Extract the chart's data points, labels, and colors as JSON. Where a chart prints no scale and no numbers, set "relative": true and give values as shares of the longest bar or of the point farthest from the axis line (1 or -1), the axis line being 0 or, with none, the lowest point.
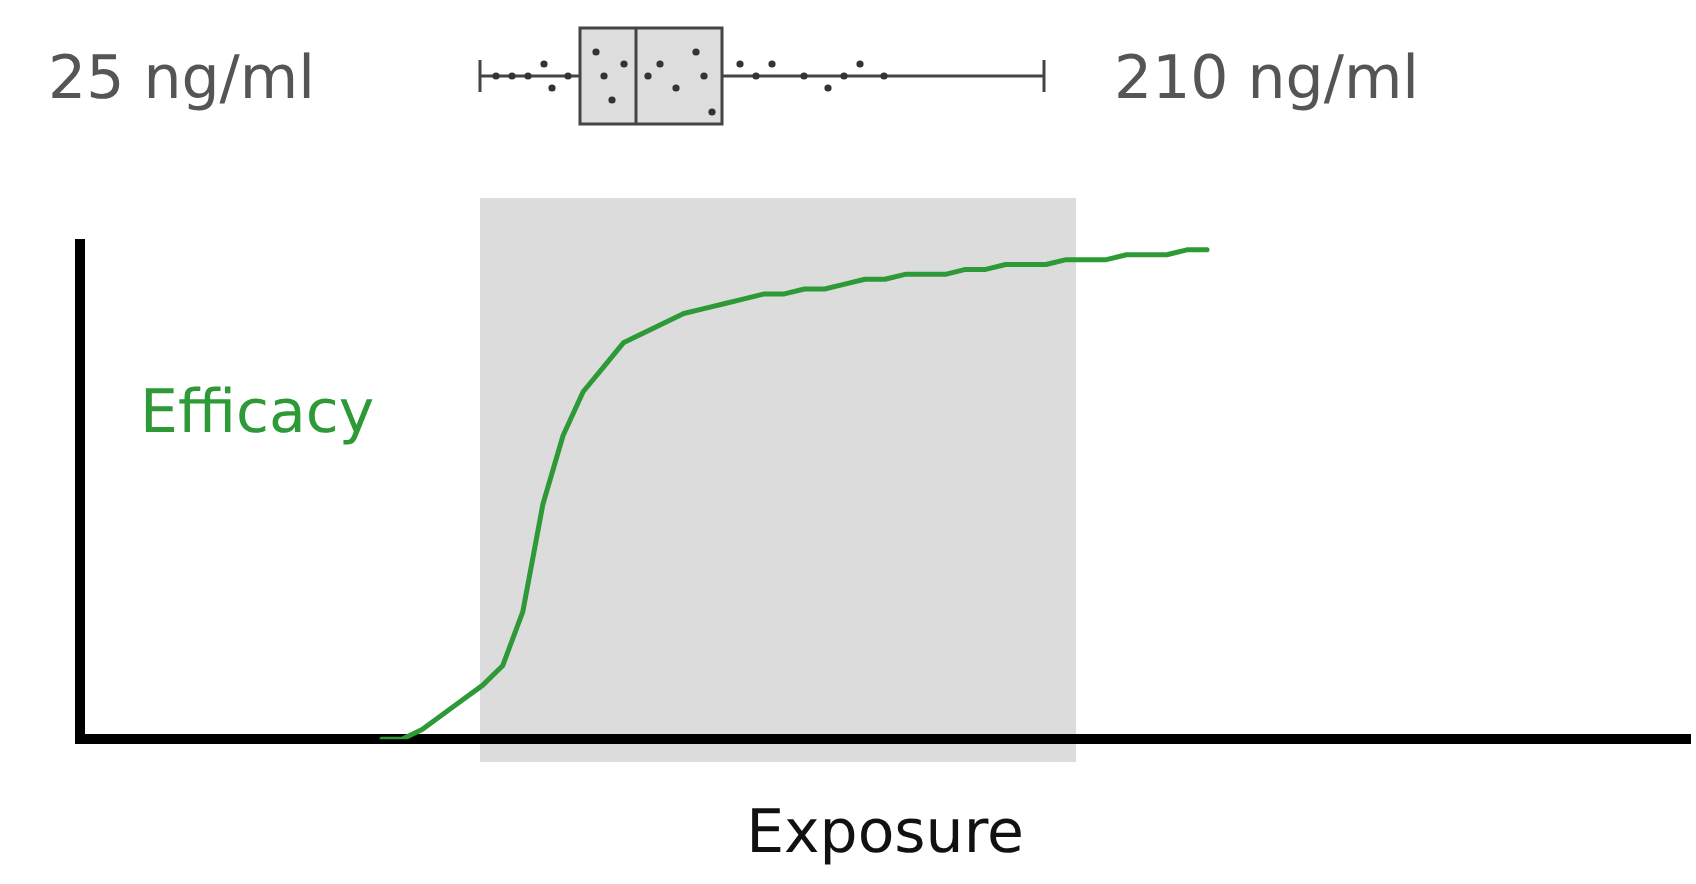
{
  "chart_data": [
    {
      "type": "other",
      "annotations": [
        "25 ng/ml",
        "210 ng/ml"
      ]
    },
    {
      "type": "line",
      "relative": true,
      "xlabel": "Exposure",
      "ylabel": "Efficacy",
      "legend": false,
      "grid": false,
      "marker": "none",
      "categories": [
        null,
        null,
        null,
        null,
        null,
        null,
        null,
        null,
        null,
        null,
        null,
        null,
        null,
        null,
        null,
        null,
        null,
        null,
        null,
        null,
        null,
        null,
        null,
        null,
        null,
        null,
        null,
        null,
        null,
        null,
        null,
        null,
        null,
        null,
        null,
        null,
        null,
        null,
        null,
        null,
        null,
        null,
        null,
        null,
        null,
        null,
        null,
        null,
        null,
        null,
        null,
        null,
        null,
        null,
        null,
        null,
        null,
        null,
        null,
        null,
        null,
        null,
        null,
        null,
        null,
        null,
        null,
        null,
        null,
        null,
        null,
        null,
        null,
        null,
        null,
        null,
        null,
        null,
        null,
        null,
        null
      ],
      "series": [
        {
          "color": "#2e9a37",
          "values": [
            null,
            null,
            null,
            null,
            null,
            null,
            null,
            null,
            null,
            null,
            null,
            null,
            null,
            null,
            null,
            0,
            0,
            0.02,
            0.05,
            0.08,
            0.11,
            0.15,
            0.26,
            0.48,
            0.62,
            0.71,
            0.76,
            0.81,
            0.83,
            0.85,
            0.87,
            0.88,
            0.89,
            0.9,
            0.91,
            0.91,
            0.92,
            0.92,
            0.93,
            0.94,
            0.94,
            0.95,
            0.95,
            0.95,
            0.96,
            0.96,
            0.97,
            0.97,
            0.97,
            0.98,
            0.98,
            0.98,
            0.99,
            0.99,
            0.99,
            1,
            1,
            null,
            null,
            null,
            null,
            null,
            null,
            null,
            null,
            null,
            null,
            null,
            null,
            null,
            null,
            null,
            null,
            null,
            null,
            null,
            null,
            null,
            null,
            null,
            null
          ]
        }
      ]
    }
  ]
}
